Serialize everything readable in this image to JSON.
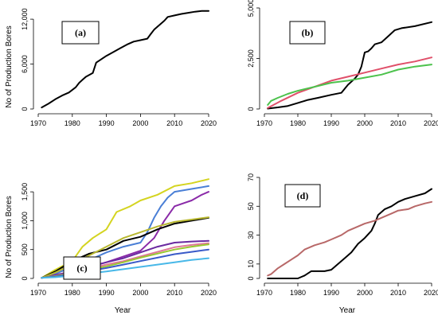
{
  "y_axis_label": "No of Production Bores",
  "x_axis_label": "Year",
  "chart_data": [
    {
      "type": "line",
      "panel": "(a)",
      "xlim": [
        1970,
        2020
      ],
      "ylim": [
        0,
        13500
      ],
      "x_ticks": [
        1970,
        1980,
        1990,
        2000,
        2010,
        2020
      ],
      "y_ticks": [
        0,
        6000,
        12000
      ],
      "y_tick_labels": [
        "0",
        "6,000",
        "12,000"
      ],
      "ylabel": "No of Production Bores",
      "xlabel": "",
      "series": [
        {
          "color": "#000000",
          "x": [
            1971,
            1973,
            1975,
            1977,
            1979,
            1981,
            1982,
            1983,
            1984,
            1986,
            1987,
            1988,
            1990,
            1992,
            1994,
            1996,
            1998,
            2000,
            2002,
            2003,
            2004,
            2005,
            2007,
            2008,
            2010,
            2012,
            2014,
            2016,
            2018,
            2020
          ],
          "y": [
            200,
            700,
            1300,
            1800,
            2200,
            2900,
            3500,
            3900,
            4300,
            4800,
            6200,
            6500,
            7100,
            7600,
            8100,
            8600,
            9000,
            9200,
            9400,
            10000,
            10600,
            11000,
            11800,
            12300,
            12500,
            12700,
            12850,
            13000,
            13100,
            13100
          ]
        }
      ]
    },
    {
      "type": "line",
      "panel": "(b)",
      "xlim": [
        1970,
        2020
      ],
      "ylim": [
        0,
        5000
      ],
      "x_ticks": [
        1970,
        1980,
        1990,
        2000,
        2010,
        2020
      ],
      "y_ticks": [
        0,
        2500,
        5000
      ],
      "y_tick_labels": [
        "0",
        "2,500",
        "5,000"
      ],
      "ylabel": "",
      "xlabel": "",
      "series": [
        {
          "color": "#000000",
          "x": [
            1971,
            1974,
            1977,
            1980,
            1983,
            1986,
            1990,
            1993,
            1995,
            1997,
            1998,
            1999,
            2000,
            2001,
            2002,
            2003,
            2005,
            2007,
            2009,
            2011,
            2015,
            2020
          ],
          "y": [
            20,
            80,
            150,
            300,
            450,
            550,
            700,
            800,
            1200,
            1500,
            1700,
            2100,
            2800,
            2850,
            3000,
            3200,
            3300,
            3600,
            3900,
            4000,
            4100,
            4300
          ]
        },
        {
          "color": "#e0506a",
          "x": [
            1971,
            1975,
            1980,
            1985,
            1990,
            1995,
            2000,
            2005,
            2010,
            2015,
            2020
          ],
          "y": [
            50,
            400,
            800,
            1100,
            1400,
            1600,
            1800,
            2000,
            2200,
            2350,
            2550
          ]
        },
        {
          "color": "#4cc24c",
          "x": [
            1971,
            1972,
            1974,
            1977,
            1980,
            1985,
            1990,
            1995,
            2000,
            2005,
            2010,
            2015,
            2020
          ],
          "y": [
            200,
            400,
            550,
            750,
            900,
            1100,
            1300,
            1400,
            1550,
            1700,
            1950,
            2100,
            2200
          ]
        }
      ]
    },
    {
      "type": "line",
      "panel": "(c)",
      "xlim": [
        1970,
        2020
      ],
      "ylim": [
        0,
        1750
      ],
      "x_ticks": [
        1970,
        1980,
        1990,
        2000,
        2010,
        2020
      ],
      "y_ticks": [
        0,
        500,
        1000,
        1500
      ],
      "y_tick_labels": [
        "0",
        "500",
        "1,000",
        "1,500"
      ],
      "ylabel": "No of Production Bores",
      "xlabel": "Year",
      "series": [
        {
          "color": "#d4d420",
          "x": [
            1971,
            1975,
            1980,
            1983,
            1986,
            1990,
            1993,
            1997,
            2000,
            2005,
            2010,
            2015,
            2020
          ],
          "y": [
            10,
            150,
            300,
            550,
            700,
            850,
            1150,
            1250,
            1350,
            1450,
            1600,
            1650,
            1720
          ]
        },
        {
          "color": "#4a7fd6",
          "x": [
            1971,
            1975,
            1980,
            1985,
            1990,
            1995,
            2000,
            2002,
            2004,
            2006,
            2008,
            2010,
            2015,
            2020
          ],
          "y": [
            10,
            80,
            200,
            320,
            450,
            550,
            620,
            800,
            1050,
            1250,
            1400,
            1500,
            1550,
            1600
          ]
        },
        {
          "color": "#8a2aa8",
          "x": [
            1971,
            1975,
            1980,
            1985,
            1990,
            1995,
            2000,
            2004,
            2007,
            2010,
            2015,
            2018,
            2020
          ],
          "y": [
            10,
            60,
            120,
            200,
            280,
            380,
            480,
            700,
            1000,
            1250,
            1350,
            1450,
            1500
          ]
        },
        {
          "color": "#000000",
          "x": [
            1971,
            1975,
            1980,
            1985,
            1990,
            1995,
            2000,
            2005,
            2010,
            2015,
            2020
          ],
          "y": [
            10,
            120,
            300,
            430,
            500,
            650,
            720,
            850,
            950,
            1000,
            1050
          ]
        },
        {
          "color": "#b8b830",
          "x": [
            1971,
            1975,
            1980,
            1985,
            1990,
            1995,
            2000,
            2005,
            2010,
            2015,
            2020
          ],
          "y": [
            10,
            100,
            250,
            400,
            550,
            700,
            800,
            900,
            980,
            1020,
            1060
          ]
        },
        {
          "color": "#6a2aa0",
          "x": [
            1971,
            1975,
            1980,
            1985,
            1990,
            1995,
            2000,
            2005,
            2010,
            2015,
            2020
          ],
          "y": [
            10,
            50,
            120,
            200,
            280,
            350,
            450,
            550,
            620,
            640,
            650
          ]
        },
        {
          "color": "#e07898",
          "x": [
            1971,
            1975,
            1980,
            1985,
            1990,
            1995,
            2000,
            2005,
            2010,
            2015,
            2020
          ],
          "y": [
            10,
            40,
            100,
            170,
            240,
            300,
            380,
            460,
            540,
            580,
            610
          ]
        },
        {
          "color": "#98c830",
          "x": [
            1971,
            1975,
            1980,
            1985,
            1990,
            1995,
            2000,
            2005,
            2010,
            2015,
            2020
          ],
          "y": [
            10,
            40,
            90,
            150,
            210,
            280,
            360,
            430,
            500,
            550,
            590
          ]
        },
        {
          "color": "#3a5ac8",
          "x": [
            1971,
            1975,
            1980,
            1985,
            1990,
            1995,
            2000,
            2005,
            2010,
            2015,
            2020
          ],
          "y": [
            10,
            30,
            80,
            130,
            180,
            240,
            300,
            360,
            420,
            460,
            500
          ]
        },
        {
          "color": "#48b8e8",
          "x": [
            1971,
            1975,
            1980,
            1985,
            1990,
            1995,
            2000,
            2005,
            2010,
            2015,
            2020
          ],
          "y": [
            10,
            20,
            50,
            90,
            120,
            160,
            200,
            240,
            280,
            320,
            350
          ]
        }
      ]
    },
    {
      "type": "line",
      "panel": "(d)",
      "xlim": [
        1970,
        2020
      ],
      "ylim": [
        0,
        70
      ],
      "x_ticks": [
        1970,
        1980,
        1990,
        2000,
        2010,
        2020
      ],
      "y_ticks": [
        0,
        10,
        30,
        50,
        70
      ],
      "y_tick_labels": [
        "0",
        "10",
        "30",
        "50",
        "70"
      ],
      "ylabel": "",
      "xlabel": "Year",
      "series": [
        {
          "color": "#000000",
          "x": [
            1971,
            1975,
            1980,
            1982,
            1984,
            1988,
            1990,
            1992,
            1994,
            1996,
            1998,
            2000,
            2002,
            2003,
            2004,
            2006,
            2008,
            2010,
            2012,
            2015,
            2018,
            2020
          ],
          "y": [
            0,
            0,
            0,
            2,
            5,
            5,
            6,
            10,
            14,
            18,
            24,
            28,
            33,
            38,
            44,
            48,
            50,
            53,
            55,
            57,
            59,
            62
          ]
        },
        {
          "color": "#b86868",
          "x": [
            1971,
            1972,
            1974,
            1976,
            1978,
            1980,
            1982,
            1985,
            1988,
            1990,
            1993,
            1995,
            1998,
            2000,
            2003,
            2005,
            2008,
            2010,
            2013,
            2015,
            2018,
            2020
          ],
          "y": [
            2,
            3,
            7,
            10,
            13,
            16,
            20,
            23,
            25,
            27,
            30,
            33,
            36,
            38,
            40,
            42,
            45,
            47,
            48,
            50,
            52,
            53
          ]
        }
      ]
    }
  ]
}
